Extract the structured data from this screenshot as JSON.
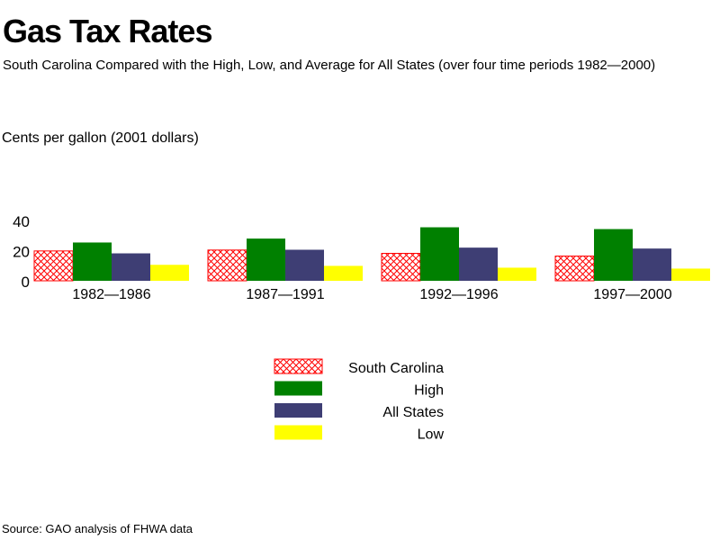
{
  "chart_data": {
    "type": "bar",
    "title": "Gas Tax Rates",
    "subtitle": "South Carolina Compared with the High, Low, and Average for All States (over four time periods 1982—2000)",
    "ylabel": "Cents per gallon (2001 dollars)",
    "xlabel": "",
    "ylim": [
      0,
      40
    ],
    "yticks": [
      "0",
      "20",
      "40"
    ],
    "grid": false,
    "legend_position": "bottom-center",
    "categories": [
      "1982—1986",
      "1987—1991",
      "1992—1996",
      "1997—2000"
    ],
    "series": [
      {
        "name": "South Carolina",
        "color": "#ff0000",
        "pattern": "crosshatch",
        "values": [
          19.8,
          20.4,
          18.2,
          16.4
        ]
      },
      {
        "name": "High",
        "color": "#008000",
        "values": [
          25.4,
          28.0,
          35.5,
          34.3
        ]
      },
      {
        "name": "All States",
        "color": "#3e3e74",
        "values": [
          18.2,
          20.6,
          22.0,
          21.4
        ]
      },
      {
        "name": "Low",
        "color": "#ffff00",
        "values": [
          10.6,
          9.9,
          8.7,
          8.1
        ]
      }
    ],
    "source": "Source: GAO analysis of FHWA data"
  }
}
